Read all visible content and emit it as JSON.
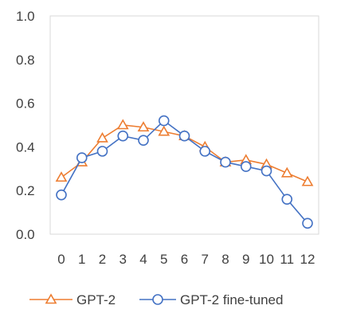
{
  "chart_data": {
    "type": "line",
    "x": [
      0,
      1,
      2,
      3,
      4,
      5,
      6,
      7,
      8,
      9,
      10,
      11,
      12
    ],
    "x_tick_labels": [
      "0",
      "1",
      "2",
      "3",
      "4",
      "5",
      "6",
      "7",
      "8",
      "9",
      "10",
      "11",
      "12"
    ],
    "ylim": [
      0,
      1.0
    ],
    "y_ticks": [
      0.0,
      0.2,
      0.4,
      0.6,
      0.8,
      1.0
    ],
    "y_tick_labels": [
      "0.0",
      "0.2",
      "0.4",
      "0.6",
      "0.8",
      "1.0"
    ],
    "grid": false,
    "legend_position": "bottom",
    "series": [
      {
        "name": "GPT-2",
        "color": "#ED7D31",
        "marker": "triangle",
        "values": [
          0.26,
          0.33,
          0.44,
          0.5,
          0.49,
          0.47,
          0.45,
          0.4,
          0.33,
          0.34,
          0.32,
          0.28,
          0.24
        ]
      },
      {
        "name": "GPT-2  fine-tuned",
        "color": "#4472C4",
        "marker": "circle",
        "values": [
          0.18,
          0.35,
          0.38,
          0.45,
          0.43,
          0.52,
          0.45,
          0.38,
          0.33,
          0.31,
          0.29,
          0.16,
          0.05
        ]
      }
    ]
  }
}
